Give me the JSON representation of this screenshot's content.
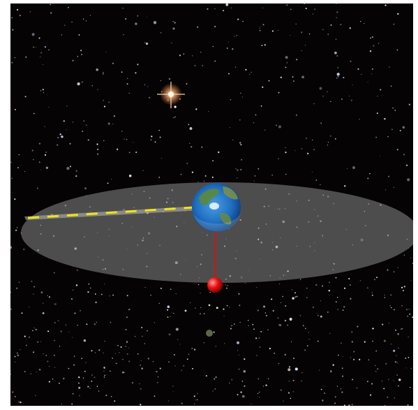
{
  "scene": {
    "background_color": "#050303",
    "disc_color": "#8a8a8a",
    "track_color": "#b8c0b0",
    "dash_color": "#f2e21a",
    "pointer_line_color": "#d21212",
    "marker_color": "#e81010",
    "earth_ocean_color": "#1f6fc2",
    "bright_star_color": "#ffd9b0",
    "icons": [
      "earth-icon",
      "red-marker-icon",
      "bright-star-icon",
      "starfield-icon"
    ]
  }
}
